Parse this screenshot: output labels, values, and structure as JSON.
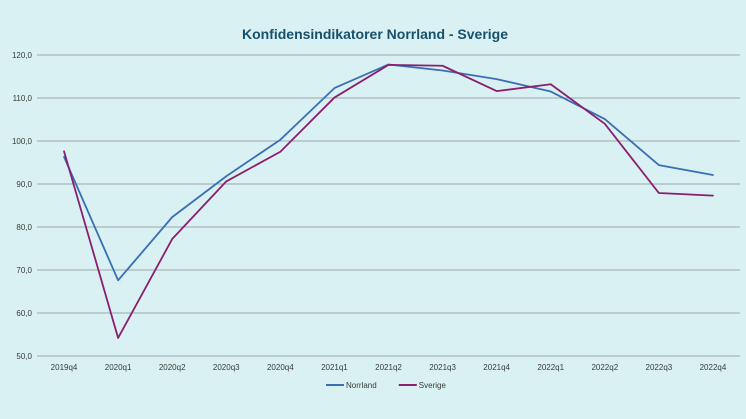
{
  "chart_data": {
    "type": "line",
    "title": "Konfidensindikatorer Norrland - Sverige",
    "xlabel": "",
    "ylabel": "",
    "categories": [
      "2019q4",
      "2020q1",
      "2020q2",
      "2020q3",
      "2020q4",
      "2021q1",
      "2021q2",
      "2021q3",
      "2021q4",
      "2022q1",
      "2022q2",
      "2022q3",
      "2022q4"
    ],
    "ylim": [
      50,
      120
    ],
    "yticks": [
      "50,0",
      "60,0",
      "70,0",
      "80,0",
      "90,0",
      "100,0",
      "110,0",
      "120,0"
    ],
    "grid": true,
    "legend_position": "bottom",
    "series": [
      {
        "name": "Norrland",
        "color": "#3a6eb5",
        "values": [
          96.3,
          67.6,
          82.3,
          91.8,
          100.3,
          112.3,
          117.8,
          116.4,
          114.4,
          111.5,
          105.1,
          94.4,
          92.1
        ]
      },
      {
        "name": "Sverige",
        "color": "#8b1f6e",
        "values": [
          97.6,
          54.2,
          77.2,
          90.6,
          97.5,
          110.1,
          117.7,
          117.5,
          111.6,
          113.2,
          104.0,
          87.9,
          87.3
        ]
      }
    ]
  }
}
